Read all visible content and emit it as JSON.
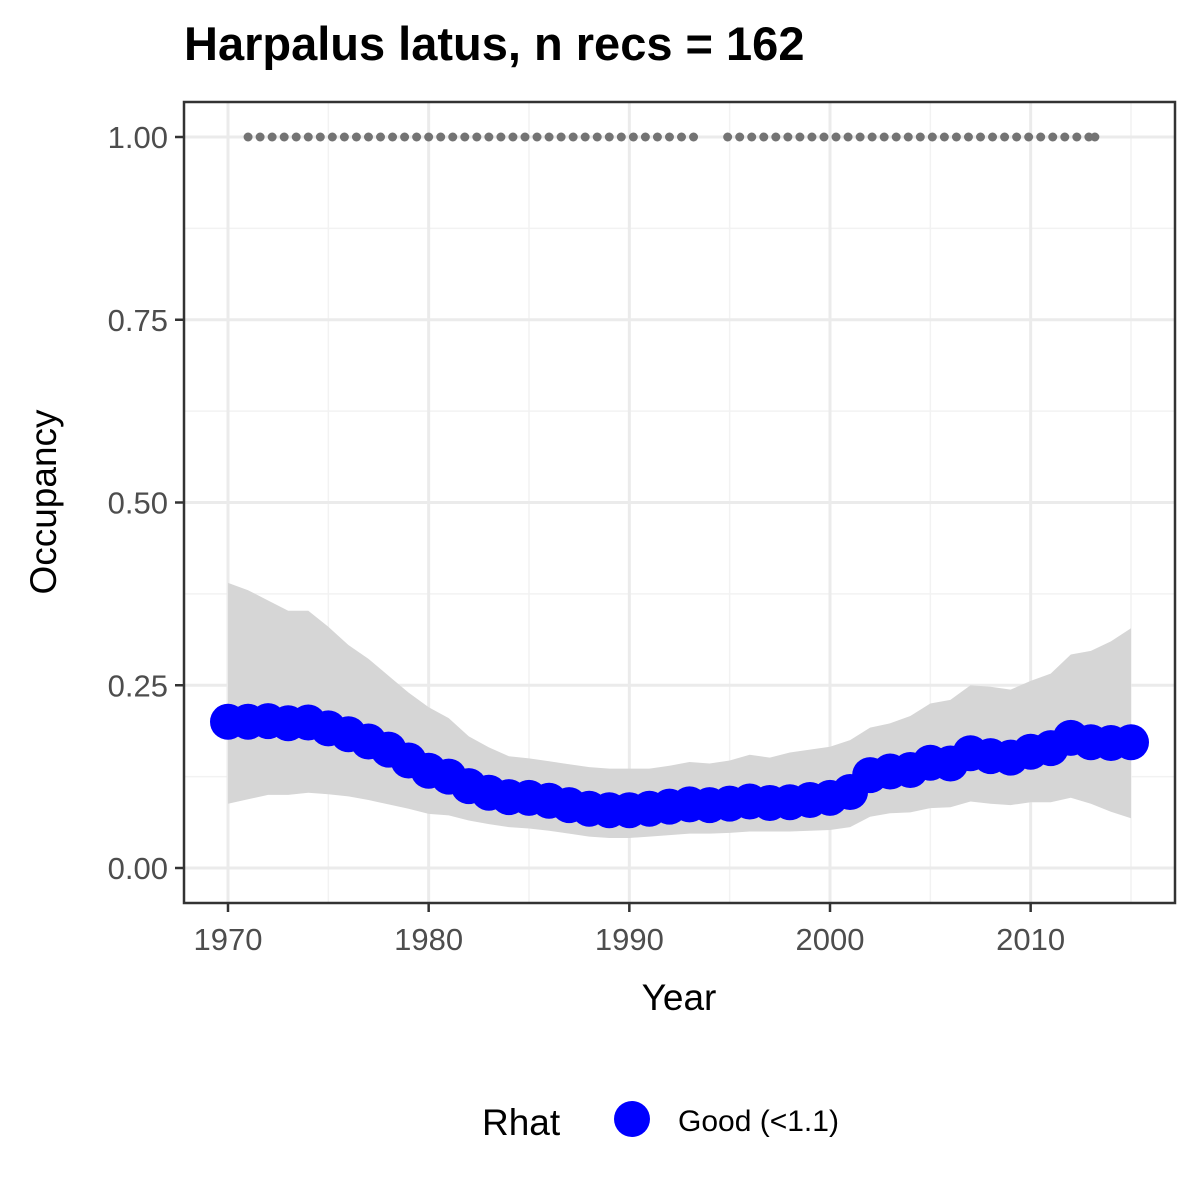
{
  "chart_data": {
    "type": "line",
    "title": "Harpalus latus, n recs = 162",
    "xlabel": "Year",
    "ylabel": "Occupancy",
    "xlim": [
      1970,
      2015
    ],
    "ylim": [
      0,
      1
    ],
    "x_ticks": [
      1970,
      1980,
      1990,
      2000,
      2010
    ],
    "y_ticks": [
      "0.00",
      "0.25",
      "0.50",
      "0.75",
      "1.00"
    ],
    "grid": true,
    "legend": {
      "position": "bottom",
      "title": "Rhat",
      "entries": [
        {
          "label": "Good (<1.1)",
          "color": "#0000ff"
        }
      ]
    },
    "series": [
      {
        "type": "mean_with_ribbon",
        "color": "#0000ff",
        "ribbon_color": "#d6d6d6",
        "x": [
          1970,
          1971,
          1972,
          1973,
          1974,
          1975,
          1976,
          1977,
          1978,
          1979,
          1980,
          1981,
          1982,
          1983,
          1984,
          1985,
          1986,
          1987,
          1988,
          1989,
          1990,
          1991,
          1992,
          1993,
          1994,
          1995,
          1996,
          1997,
          1998,
          1999,
          2000,
          2001,
          2002,
          2003,
          2004,
          2005,
          2006,
          2007,
          2008,
          2009,
          2010,
          2011,
          2012,
          2013,
          2014,
          2015
        ],
        "mean": [
          0.2,
          0.2,
          0.201,
          0.198,
          0.199,
          0.191,
          0.183,
          0.173,
          0.162,
          0.147,
          0.133,
          0.125,
          0.112,
          0.103,
          0.097,
          0.096,
          0.092,
          0.086,
          0.081,
          0.079,
          0.079,
          0.081,
          0.084,
          0.087,
          0.086,
          0.088,
          0.091,
          0.089,
          0.09,
          0.093,
          0.096,
          0.104,
          0.127,
          0.132,
          0.134,
          0.144,
          0.143,
          0.157,
          0.153,
          0.151,
          0.159,
          0.164,
          0.178,
          0.172,
          0.171,
          0.172
        ],
        "lower": [
          0.088,
          0.094,
          0.1,
          0.1,
          0.103,
          0.101,
          0.098,
          0.093,
          0.087,
          0.081,
          0.074,
          0.072,
          0.065,
          0.06,
          0.056,
          0.054,
          0.051,
          0.047,
          0.043,
          0.041,
          0.041,
          0.043,
          0.045,
          0.047,
          0.047,
          0.048,
          0.05,
          0.05,
          0.05,
          0.051,
          0.052,
          0.056,
          0.07,
          0.075,
          0.076,
          0.082,
          0.083,
          0.091,
          0.088,
          0.086,
          0.09,
          0.09,
          0.096,
          0.088,
          0.077,
          0.068
        ],
        "upper": [
          0.39,
          0.38,
          0.366,
          0.352,
          0.352,
          0.33,
          0.305,
          0.286,
          0.263,
          0.24,
          0.22,
          0.205,
          0.18,
          0.165,
          0.153,
          0.15,
          0.146,
          0.142,
          0.138,
          0.136,
          0.136,
          0.136,
          0.14,
          0.145,
          0.143,
          0.147,
          0.155,
          0.151,
          0.158,
          0.162,
          0.166,
          0.175,
          0.192,
          0.198,
          0.208,
          0.225,
          0.23,
          0.25,
          0.248,
          0.244,
          0.256,
          0.266,
          0.292,
          0.297,
          0.31,
          0.328
        ]
      },
      {
        "type": "points",
        "color": "#737373",
        "x": [
          1971.0,
          1971.6,
          1972.2,
          1972.8,
          1973.4,
          1974.0,
          1974.6,
          1975.2,
          1975.8,
          1976.4,
          1977.0,
          1977.6,
          1978.2,
          1978.8,
          1979.4,
          1980.0,
          1980.6,
          1981.2,
          1981.8,
          1982.4,
          1983.0,
          1983.6,
          1984.2,
          1984.8,
          1985.4,
          1986.0,
          1986.6,
          1987.2,
          1987.8,
          1988.4,
          1989.0,
          1989.6,
          1990.2,
          1990.8,
          1991.4,
          1992.0,
          1992.6,
          1993.2,
          1994.9,
          1995.5,
          1996.1,
          1996.7,
          1997.3,
          1997.9,
          1998.5,
          1999.1,
          1999.7,
          2000.3,
          2000.9,
          2001.5,
          2002.1,
          2002.7,
          2003.3,
          2003.9,
          2004.5,
          2005.1,
          2005.7,
          2006.3,
          2006.9,
          2007.5,
          2008.1,
          2008.7,
          2009.3,
          2009.9,
          2010.5,
          2011.1,
          2011.7,
          2012.3,
          2012.9,
          2013.2
        ],
        "y": 1.0
      }
    ]
  }
}
